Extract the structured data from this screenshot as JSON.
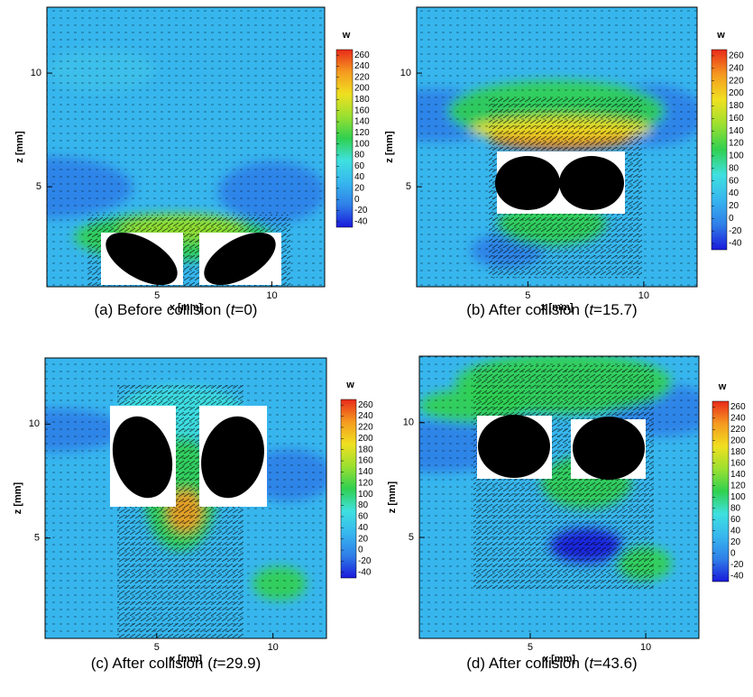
{
  "chart_data": [
    {
      "type": "contour",
      "caption": [
        "(a) Before collision (",
        "t",
        "=0)"
      ],
      "xlabel": "x [mm]",
      "ylabel": "z [mm]",
      "colorbar_label": "w",
      "xlim": [
        0.2,
        12.3
      ],
      "ylim": [
        0.6,
        12.9
      ],
      "xticks": [
        5,
        10
      ],
      "yticks": [
        5,
        10
      ],
      "clim": [
        -50,
        270
      ],
      "cticks": [
        -40,
        -20,
        0,
        20,
        40,
        60,
        80,
        100,
        120,
        140,
        160,
        180,
        200,
        220,
        240,
        260
      ],
      "colormap": [
        "#1a1adb",
        "#2f7fe8",
        "#37b6ee",
        "#3fe0e0",
        "#30d050",
        "#9be030",
        "#f0e020",
        "#f59a20",
        "#e82a1a"
      ]
    },
    {
      "type": "contour",
      "caption": [
        "(b) After collision (",
        "t",
        "=15.7)"
      ],
      "xlabel": "x [mm]",
      "ylabel": "z [mm]",
      "colorbar_label": "w",
      "xlim": [
        0.2,
        12.3
      ],
      "ylim": [
        0.6,
        12.9
      ],
      "xticks": [
        5,
        10
      ],
      "yticks": [
        5,
        10
      ],
      "clim": [
        -50,
        270
      ],
      "cticks": [
        -40,
        -20,
        0,
        20,
        40,
        60,
        80,
        100,
        120,
        140,
        160,
        180,
        200,
        220,
        240,
        260
      ],
      "colormap": [
        "#1a1adb",
        "#2f7fe8",
        "#37b6ee",
        "#3fe0e0",
        "#30d050",
        "#9be030",
        "#f0e020",
        "#f59a20",
        "#e82a1a"
      ]
    },
    {
      "type": "contour",
      "caption": [
        "(c) After collision (",
        "t",
        "=29.9)"
      ],
      "xlabel": "x [mm]",
      "ylabel": "z [mm]",
      "colorbar_label": "w",
      "xlim": [
        0.2,
        12.3
      ],
      "ylim": [
        0.6,
        12.9
      ],
      "xticks": [
        5,
        10
      ],
      "yticks": [
        5,
        10
      ],
      "clim": [
        -50,
        270
      ],
      "cticks": [
        -40,
        -20,
        0,
        20,
        40,
        60,
        80,
        100,
        120,
        140,
        160,
        180,
        200,
        220,
        240,
        260
      ],
      "colormap": [
        "#1a1adb",
        "#2f7fe8",
        "#37b6ee",
        "#3fe0e0",
        "#30d050",
        "#9be030",
        "#f0e020",
        "#f59a20",
        "#e82a1a"
      ]
    },
    {
      "type": "contour",
      "caption": [
        "(d) After collision (",
        "t",
        "=43.6)"
      ],
      "xlabel": "x [mm]",
      "ylabel": "z [mm]",
      "colorbar_label": "w",
      "xlim": [
        0.2,
        12.3
      ],
      "ylim": [
        0.6,
        12.9
      ],
      "xticks": [
        5,
        10
      ],
      "yticks": [
        5,
        10
      ],
      "clim": [
        -50,
        270
      ],
      "cticks": [
        -40,
        -20,
        0,
        20,
        40,
        60,
        80,
        100,
        120,
        140,
        160,
        180,
        200,
        220,
        240,
        260
      ],
      "colormap": [
        "#1a1adb",
        "#2f7fe8",
        "#37b6ee",
        "#3fe0e0",
        "#30d050",
        "#9be030",
        "#f0e020",
        "#f59a20",
        "#e82a1a"
      ]
    }
  ]
}
